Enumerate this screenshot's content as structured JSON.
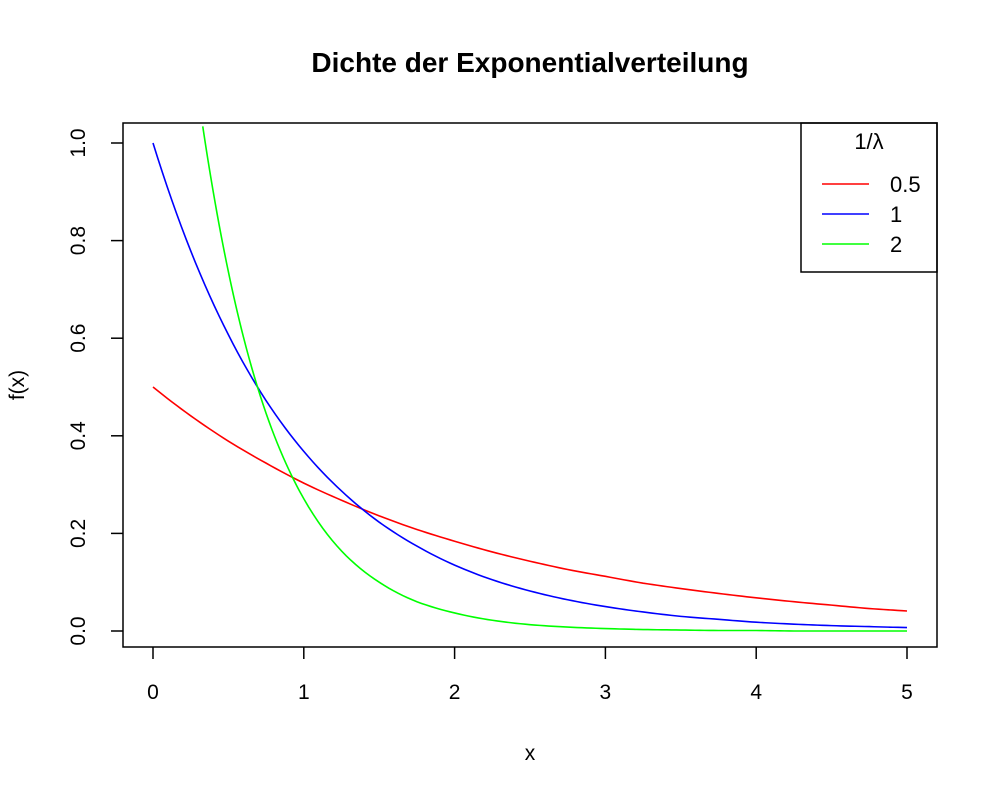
{
  "chart_data": {
    "type": "line",
    "title": "Dichte der Exponentialverteilung",
    "xlabel": "x",
    "ylabel": "f(x)",
    "xlim": [
      0,
      5
    ],
    "ylim": [
      0,
      1
    ],
    "x_ticks": [
      "0",
      "1",
      "2",
      "3",
      "4",
      "5"
    ],
    "y_ticks": [
      "0.0",
      "0.2",
      "0.4",
      "0.6",
      "0.8",
      "1.0"
    ],
    "grid": false,
    "legend_position": "top-right",
    "legend_title": "1/λ",
    "series": [
      {
        "name": "0.5",
        "color": "#ff0000",
        "x": [
          0,
          0.25,
          0.5,
          0.75,
          1,
          1.25,
          1.5,
          1.75,
          2,
          2.25,
          2.5,
          2.75,
          3,
          3.25,
          3.5,
          3.75,
          4,
          4.25,
          4.5,
          4.75,
          5
        ],
        "y": [
          0.5,
          0.441,
          0.389,
          0.344,
          0.303,
          0.268,
          0.236,
          0.208,
          0.184,
          0.162,
          0.143,
          0.126,
          0.112,
          0.098,
          0.087,
          0.077,
          0.068,
          0.06,
          0.053,
          0.046,
          0.041
        ]
      },
      {
        "name": "1",
        "color": "#0000ff",
        "x": [
          0,
          0.25,
          0.5,
          0.75,
          1,
          1.25,
          1.5,
          1.75,
          2,
          2.25,
          2.5,
          2.75,
          3,
          3.25,
          3.5,
          3.75,
          4,
          4.25,
          4.5,
          4.75,
          5
        ],
        "y": [
          1.0,
          0.779,
          0.607,
          0.472,
          0.368,
          0.287,
          0.223,
          0.174,
          0.135,
          0.105,
          0.082,
          0.064,
          0.05,
          0.039,
          0.03,
          0.024,
          0.018,
          0.014,
          0.011,
          0.009,
          0.007
        ]
      },
      {
        "name": "2",
        "color": "#00ff00",
        "x": [
          0.33,
          0.4,
          0.5,
          0.6,
          0.75,
          0.9,
          1,
          1.25,
          1.5,
          1.75,
          2,
          2.25,
          2.5,
          2.75,
          3,
          3.25,
          3.5,
          3.75,
          4,
          4.25,
          4.5,
          4.75,
          5
        ],
        "y": [
          1.034,
          0.899,
          0.736,
          0.602,
          0.446,
          0.331,
          0.271,
          0.164,
          0.1,
          0.06,
          0.037,
          0.022,
          0.013,
          0.008,
          0.005,
          0.003,
          0.002,
          0.001,
          0.001,
          0.0,
          0.0,
          0.0,
          0.0
        ]
      }
    ]
  }
}
